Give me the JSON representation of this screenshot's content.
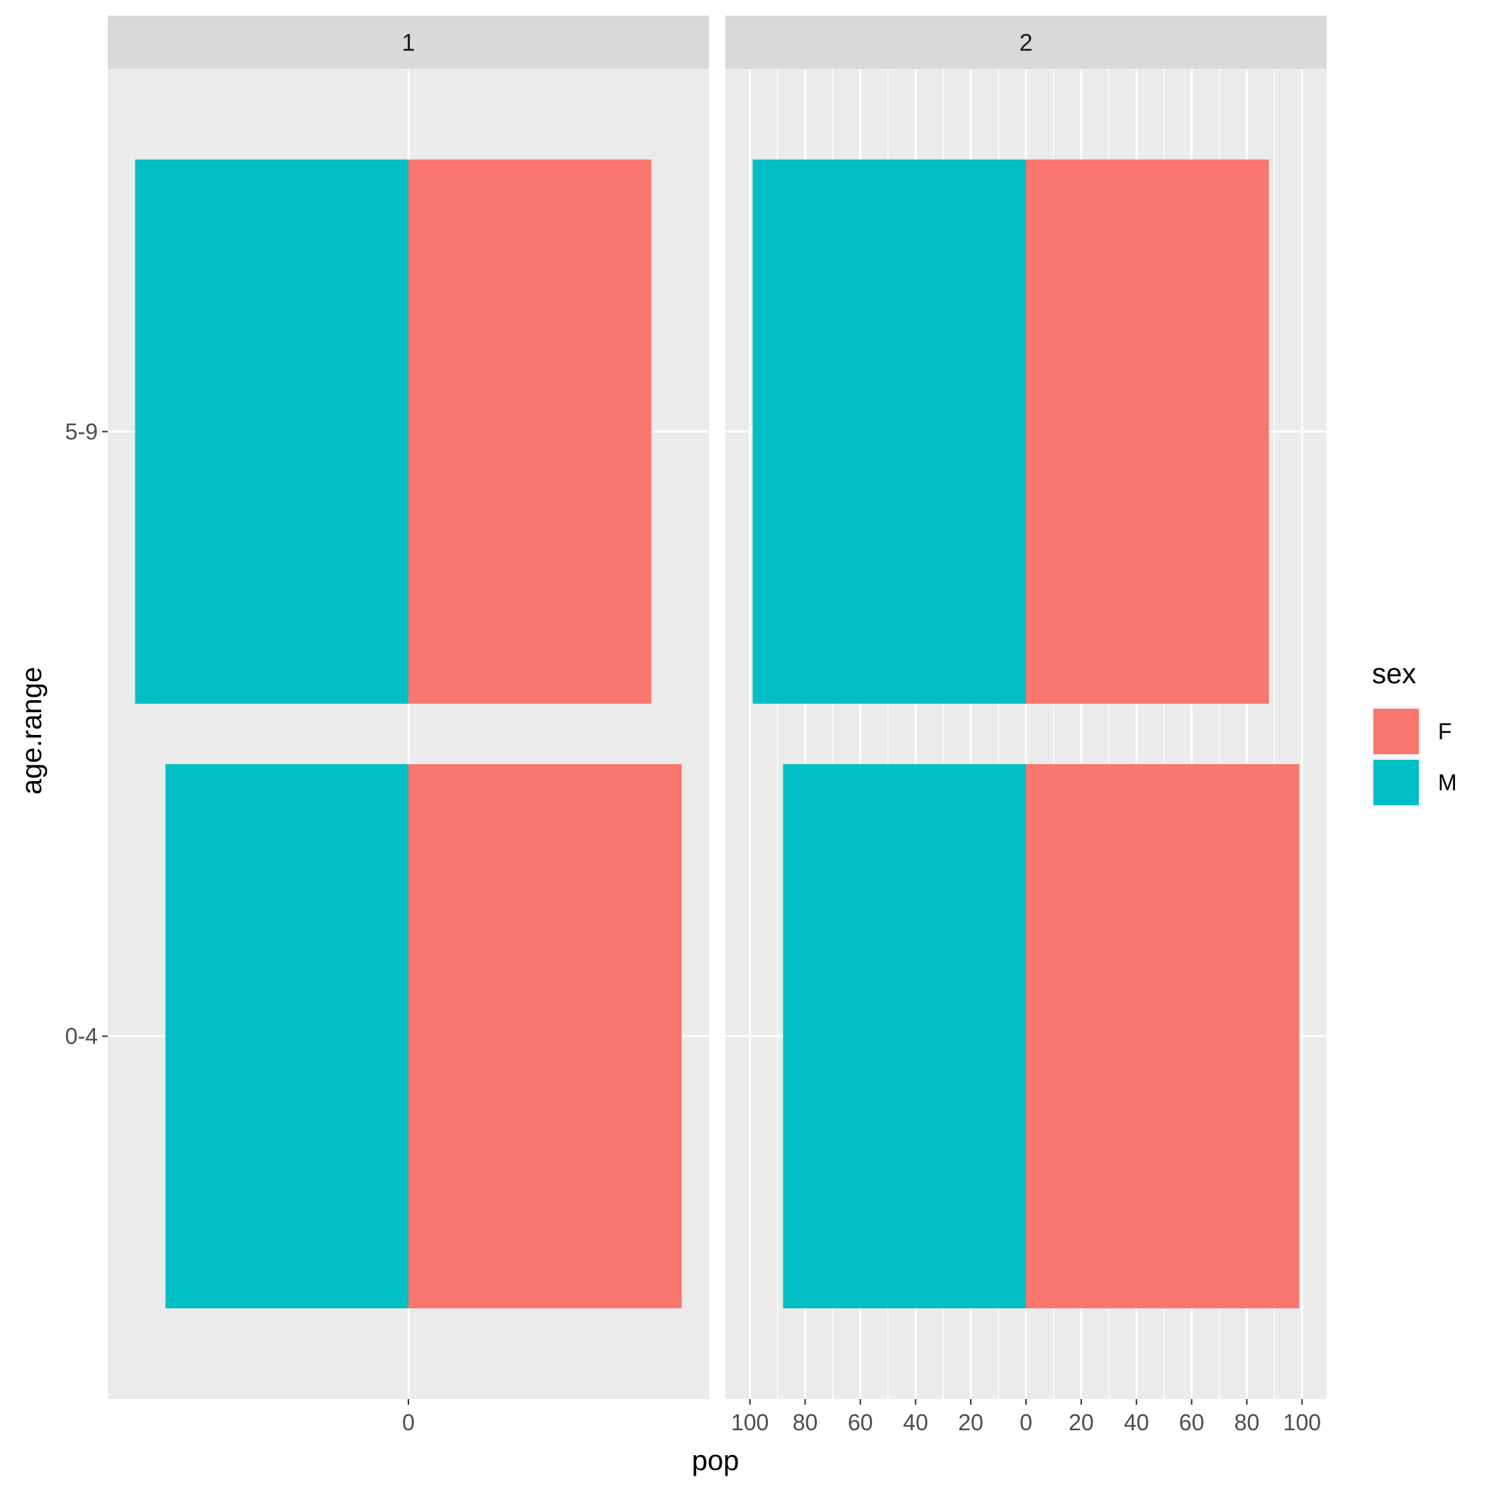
{
  "chart_data": {
    "type": "bar",
    "orientation": "horizontal",
    "layout": "facet-population-pyramid",
    "xlabel": "pop",
    "ylabel": "age.range",
    "categories": [
      "0-4",
      "5-9"
    ],
    "legend": {
      "title": "sex",
      "placement": "right",
      "entries": [
        {
          "label": "F",
          "color": "#F8766D"
        },
        {
          "label": "M",
          "color": "#00BFC4"
        }
      ]
    },
    "panel_background": "#EBEBEB",
    "strip_background": "#D9D9D9",
    "grid": true,
    "facets": [
      {
        "label": "1",
        "xlim": [
          -99,
          99
        ],
        "x_tick_values": [
          0
        ],
        "x_tick_labels": [
          "0"
        ],
        "series": [
          {
            "name": "F",
            "values": [
              99,
              88
            ]
          },
          {
            "name": "M",
            "values": [
              -88,
              -99
            ]
          }
        ]
      },
      {
        "label": "2",
        "xlim": [
          -99,
          99
        ],
        "x_tick_values": [
          -100,
          -80,
          -60,
          -40,
          -20,
          0,
          20,
          40,
          60,
          80,
          100
        ],
        "x_tick_labels": [
          "100",
          "80",
          "60",
          "40",
          "20",
          "0",
          "20",
          "40",
          "60",
          "80",
          "100"
        ],
        "series": [
          {
            "name": "F",
            "values": [
              99,
              88
            ]
          },
          {
            "name": "M",
            "values": [
              -88,
              -99
            ]
          }
        ]
      }
    ]
  }
}
